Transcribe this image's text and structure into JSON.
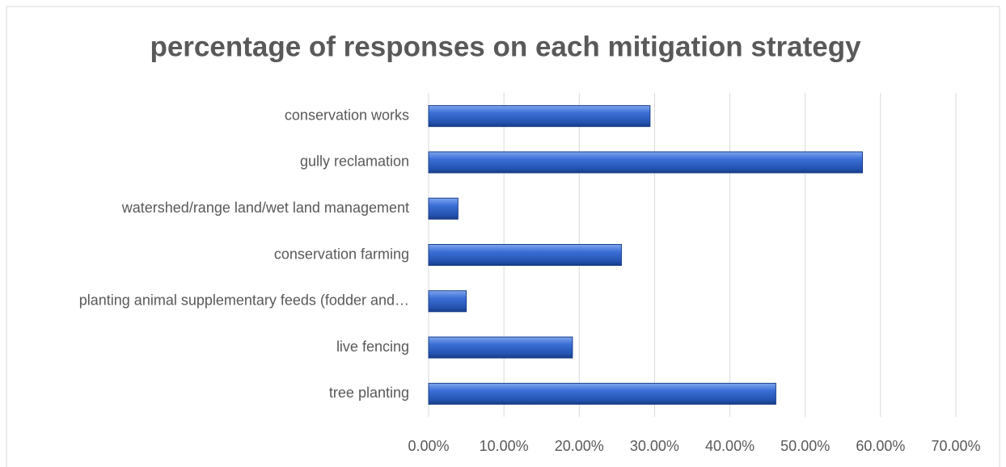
{
  "chart_data": {
    "type": "bar",
    "orientation": "horizontal",
    "title": "percentage of responses on each mitigation strategy",
    "categories": [
      "conservation works",
      "gully reclamation",
      "watershed/range land/wet land management",
      "conservation farming",
      "planting animal supplementary feeds (fodder and…",
      "live fencing",
      "tree planting"
    ],
    "values": [
      29.4,
      57.6,
      3.9,
      25.6,
      5.0,
      19.1,
      46.1
    ],
    "color": "#2e62c8",
    "xlim": [
      0,
      70
    ],
    "xticks": [
      {
        "value": 0,
        "label": "0.00%"
      },
      {
        "value": 10,
        "label": "10.00%"
      },
      {
        "value": 20,
        "label": "20.00%"
      },
      {
        "value": 30,
        "label": "30.00%"
      },
      {
        "value": 40,
        "label": "40.00%"
      },
      {
        "value": 50,
        "label": "50.00%"
      },
      {
        "value": 60,
        "label": "60.00%"
      },
      {
        "value": 70,
        "label": "70.00%"
      }
    ],
    "grid": true
  }
}
